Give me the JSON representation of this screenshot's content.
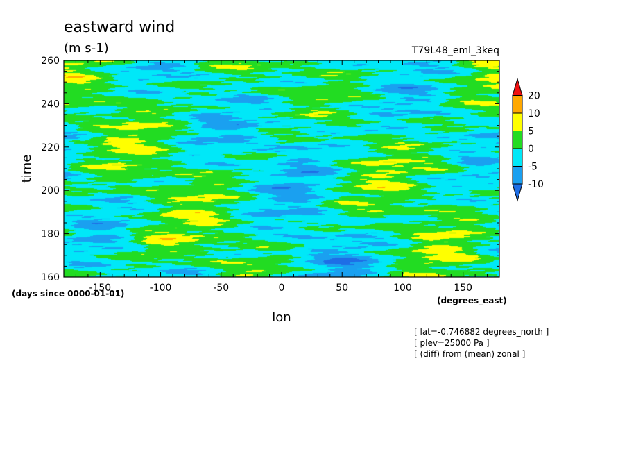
{
  "chart_data": {
    "type": "heatmap",
    "title": "eastward wind",
    "units": "(m s-1)",
    "run_label": "T79L48_eml_3keq",
    "xlabel": "lon",
    "x_units": "(degrees_east)",
    "ylabel": "time",
    "y_units": "(days since 0000-01-01)",
    "xlim": [
      -180,
      180
    ],
    "ylim": [
      160,
      260
    ],
    "x_ticks": [
      -150,
      -100,
      -50,
      0,
      50,
      100,
      150
    ],
    "x_tick_labels": [
      "-150",
      "-100",
      "-50",
      "0",
      "50",
      "100",
      "150"
    ],
    "y_ticks": [
      160,
      180,
      200,
      220,
      240,
      260
    ],
    "y_tick_labels": [
      "160",
      "180",
      "200",
      "220",
      "240",
      "260"
    ],
    "colorbar": {
      "levels": [
        -10,
        -5,
        0,
        5,
        10,
        20
      ],
      "labels": [
        "-10",
        "-5",
        "0",
        "5",
        "10",
        "20"
      ],
      "colors": [
        "#1e6ee6",
        "#1aa0f0",
        "#00e8f8",
        "#22dc22",
        "#ffff00",
        "#ffa800",
        "#f01010"
      ]
    },
    "info": [
      "[ lat=-0.746882 degrees_north ]",
      "[ plev=25000 Pa ]",
      "[ (diff) from (mean) zonal ]"
    ]
  }
}
